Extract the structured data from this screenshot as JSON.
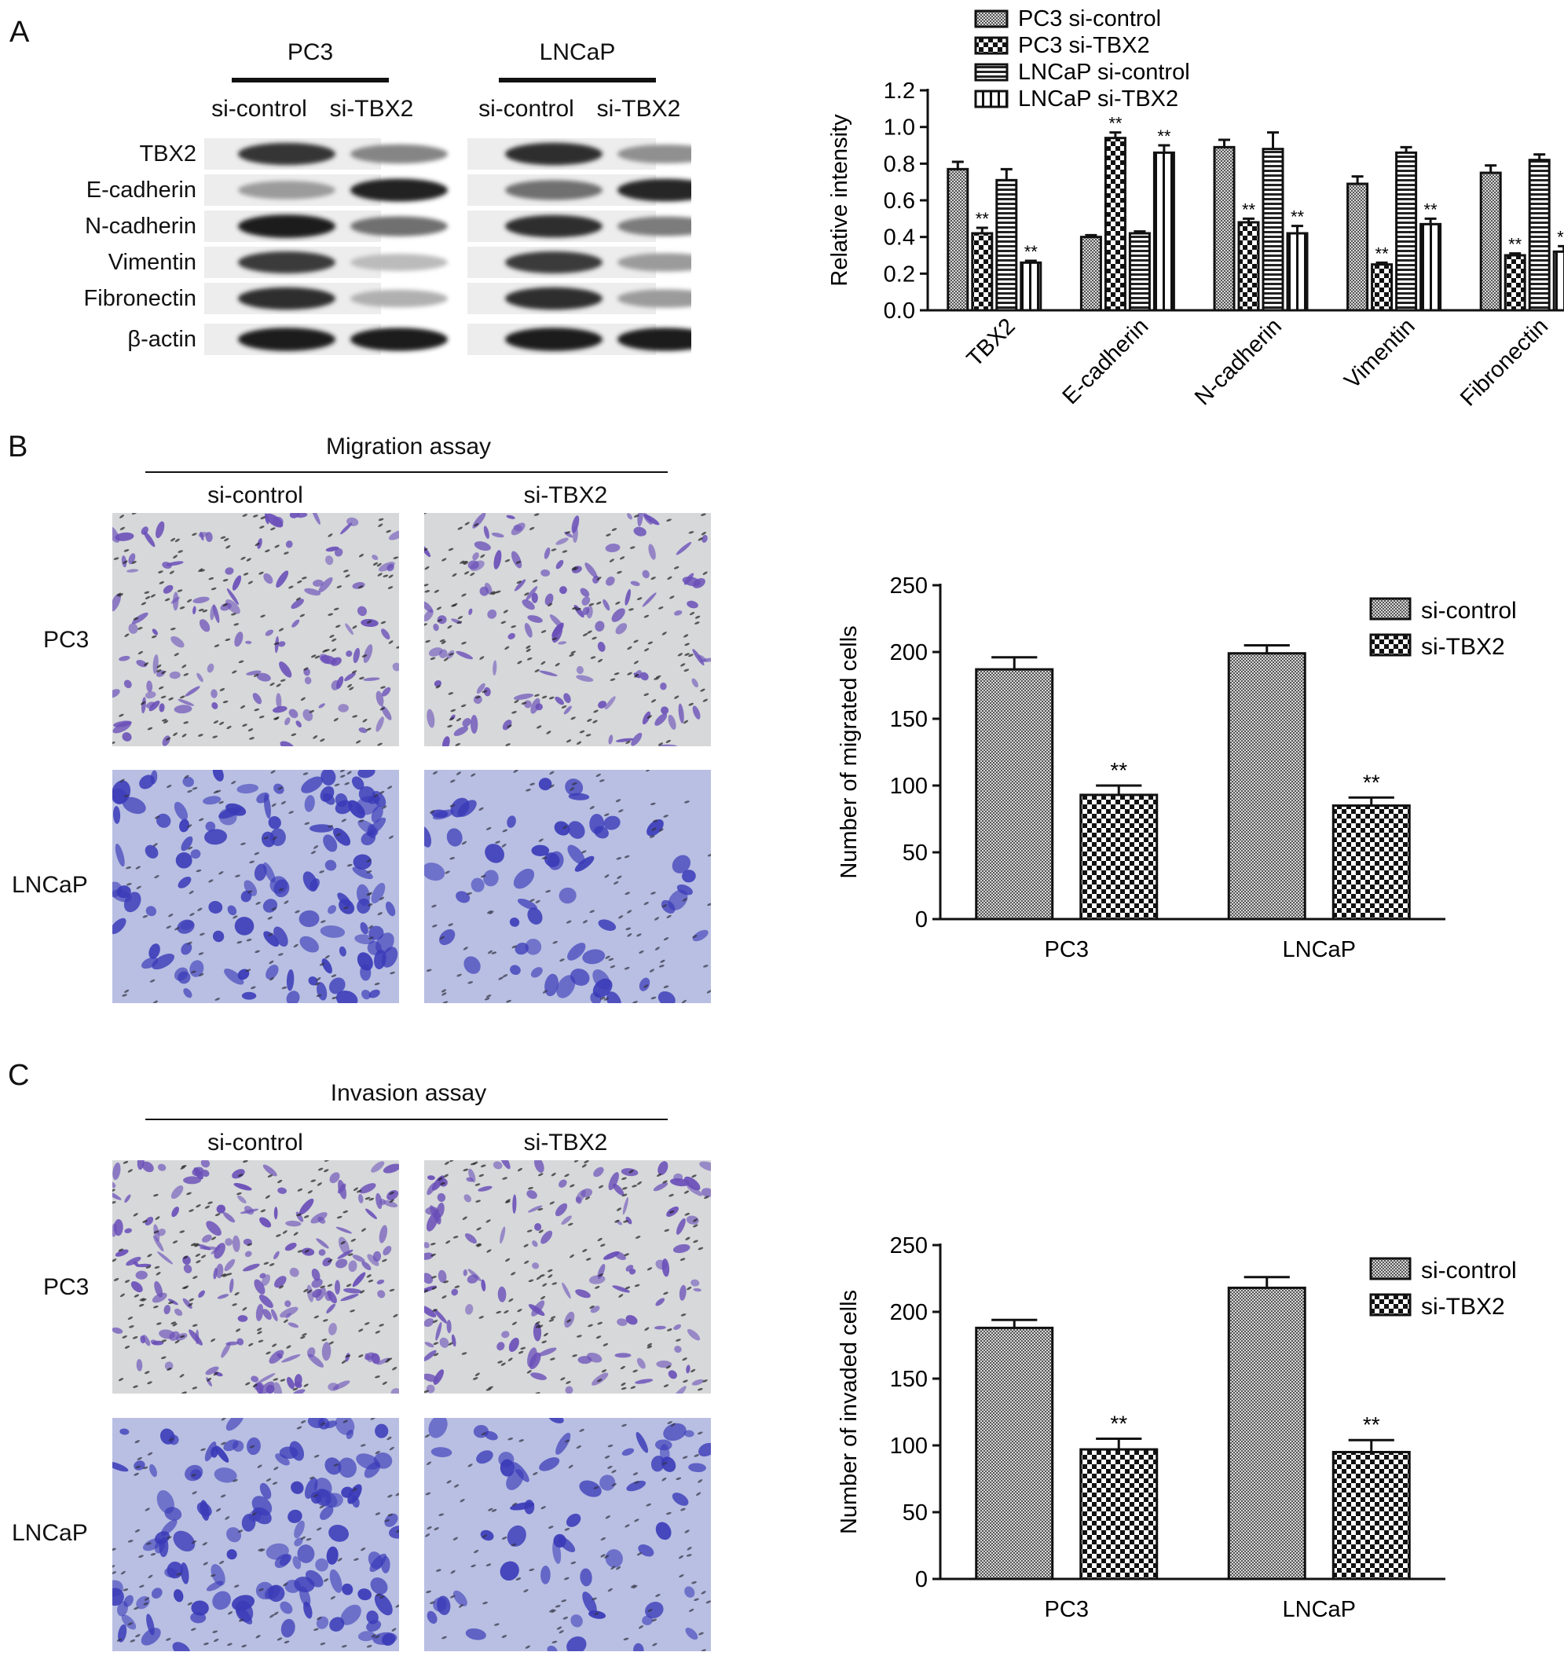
{
  "panels": {
    "a": {
      "letter": "A",
      "groups": [
        "PC3",
        "LNCaP"
      ],
      "conditions": [
        "si-control",
        "si-TBX2"
      ],
      "proteins": [
        "TBX2",
        "E-cadherin",
        "N-cadherin",
        "Vimentin",
        "Fibronectin",
        "β-actin"
      ],
      "band_intensity": [
        [
          0.82,
          0.45,
          0.85,
          0.4
        ],
        [
          0.35,
          0.92,
          0.55,
          0.9
        ],
        [
          0.95,
          0.55,
          0.85,
          0.5
        ],
        [
          0.8,
          0.2,
          0.8,
          0.35
        ],
        [
          0.85,
          0.25,
          0.85,
          0.35
        ],
        [
          0.95,
          0.95,
          0.95,
          0.95
        ]
      ]
    },
    "b": {
      "letter": "B",
      "assay_title": "Migration assay",
      "conditions": [
        "si-control",
        "si-TBX2"
      ],
      "rows": [
        "PC3",
        "LNCaP"
      ]
    },
    "c": {
      "letter": "C",
      "assay_title": "Invasion assay",
      "conditions": [
        "si-control",
        "si-TBX2"
      ],
      "rows": [
        "PC3",
        "LNCaP"
      ]
    }
  },
  "colors": {
    "stain_light_bg": "#d6d8da",
    "stain_purple": "#6a4fb8",
    "stain_blue_bg": "#b8bfe2",
    "stain_blue": "#3a3ab8",
    "ink": "#111111"
  },
  "chart_data": [
    {
      "type": "bar",
      "categories": [
        "TBX2",
        "E-cadherin",
        "N-cadherin",
        "Vimentin",
        "Fibronectin"
      ],
      "series": [
        {
          "name": "PC3 si-control",
          "values": [
            0.77,
            0.4,
            0.89,
            0.69,
            0.75
          ],
          "errors": [
            0.04,
            0.01,
            0.04,
            0.04,
            0.04
          ]
        },
        {
          "name": "PC3 si-TBX2",
          "values": [
            0.42,
            0.94,
            0.48,
            0.25,
            0.3
          ],
          "errors": [
            0.03,
            0.03,
            0.02,
            0.01,
            0.01
          ]
        },
        {
          "name": "LNCaP si-control",
          "values": [
            0.71,
            0.42,
            0.88,
            0.86,
            0.82
          ],
          "errors": [
            0.06,
            0.01,
            0.09,
            0.03,
            0.03
          ]
        },
        {
          "name": "LNCaP si-TBX2",
          "values": [
            0.26,
            0.86,
            0.42,
            0.47,
            0.32
          ],
          "errors": [
            0.01,
            0.04,
            0.04,
            0.03,
            0.03
          ]
        }
      ],
      "significance": "**",
      "ylabel": "Relative intensity",
      "ylim": [
        0.0,
        1.2
      ],
      "yticks": [
        "0.0",
        "0.2",
        "0.4",
        "0.6",
        "0.8",
        "1.0",
        "1.2"
      ],
      "legend": "top",
      "grid": false
    },
    {
      "type": "bar",
      "categories": [
        "PC3",
        "LNCaP"
      ],
      "series": [
        {
          "name": "si-control",
          "values": [
            187,
            199
          ],
          "errors": [
            9,
            6
          ]
        },
        {
          "name": "si-TBX2",
          "values": [
            93,
            85
          ],
          "errors": [
            7,
            6
          ]
        }
      ],
      "significance": "**",
      "ylabel": "Number of migrated cells",
      "ylim": [
        0,
        250
      ],
      "yticks": [
        "0",
        "50",
        "100",
        "150",
        "200",
        "250"
      ],
      "legend": "top-right",
      "grid": false
    },
    {
      "type": "bar",
      "categories": [
        "PC3",
        "LNCaP"
      ],
      "series": [
        {
          "name": "si-control",
          "values": [
            188,
            218
          ],
          "errors": [
            6,
            8
          ]
        },
        {
          "name": "si-TBX2",
          "values": [
            97,
            95
          ],
          "errors": [
            8,
            9
          ]
        }
      ],
      "significance": "**",
      "ylabel": "Number of invaded cells",
      "ylim": [
        0,
        250
      ],
      "yticks": [
        "0",
        "50",
        "100",
        "150",
        "200",
        "250"
      ],
      "legend": "top-right",
      "grid": false
    }
  ]
}
